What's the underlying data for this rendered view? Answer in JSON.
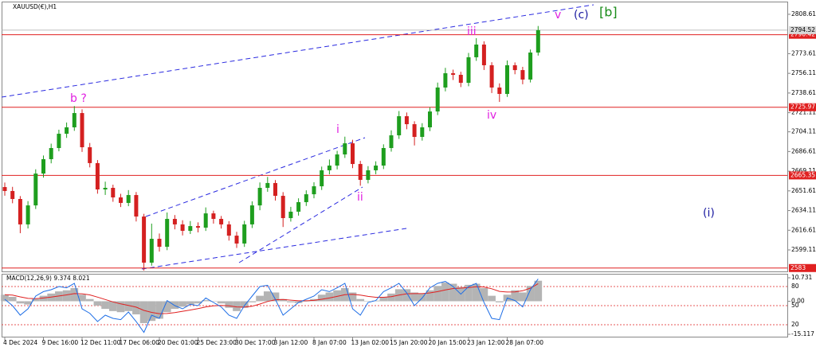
{
  "chart_data": [
    {
      "type": "candlestick",
      "title": "XAUUSD(€),H1",
      "categories": [
        "4 Dec 2024",
        null,
        null,
        null,
        null,
        "9 Dec 16:00",
        null,
        null,
        null,
        null,
        "12 Dec 11:00",
        null,
        null,
        null,
        null,
        "17 Dec 06:00",
        null,
        null,
        null,
        null,
        "20 Dec 01:00",
        null,
        null,
        null,
        null,
        "25 Dec 23:00",
        null,
        null,
        null,
        null,
        "30 Dec 17:00",
        null,
        null,
        null,
        null,
        "3 Jan 12:00",
        null,
        null,
        null,
        null,
        "8 Jan 07:00",
        null,
        null,
        null,
        null,
        "13 Jan 02:00",
        null,
        null,
        null,
        null,
        "15 Jan 20:00",
        null,
        null,
        null,
        null,
        "20 Jan 15:00",
        null,
        null,
        null,
        null,
        "23 Jan 12:00",
        null,
        null,
        null,
        null,
        "28 Jan 07:00",
        null,
        null,
        null,
        null
      ],
      "open": [
        2655.0,
        2651.5,
        2644.4,
        2621.8,
        2638.7,
        2667.0,
        2679.8,
        2689.7,
        2702.4,
        2708.1,
        2720.8,
        2690.4,
        2676.3,
        2652.9,
        2654.3,
        2645.8,
        2640.9,
        2647.9,
        2628.8,
        2587.8,
        2609.0,
        2601.9,
        2626.7,
        2621.8,
        2616.1,
        2620.3,
        2618.9,
        2631.6,
        2626.7,
        2621.8,
        2611.8,
        2604.8,
        2621.8,
        2638.7,
        2654.3,
        2658.6,
        2647.2,
        2627.4,
        2633.1,
        2641.6,
        2648.6,
        2655.7,
        2669.9,
        2674.1,
        2684.0,
        2693.9,
        2675.5,
        2661.4,
        2669.9,
        2674.1,
        2689.7,
        2701.0,
        2718.0,
        2710.9,
        2699.6,
        2708.1,
        2722.2,
        2743.5,
        2756.2,
        2754.8,
        2747.7,
        2770.4,
        2781.7,
        2763.3,
        2743.5,
        2737.8,
        2763.3,
        2759.0,
        2750.6,
        2774.6
      ],
      "high": [
        2659.0,
        2655.2,
        2647.0,
        2642.5,
        2670.8,
        2683.1,
        2693.6,
        2706.0,
        2712.4,
        2727.0,
        2724.1,
        2694.2,
        2679.0,
        2659.8,
        2657.1,
        2649.0,
        2652.3,
        2650.6,
        2631.2,
        2622.5,
        2613.7,
        2632.4,
        2630.1,
        2625.5,
        2624.8,
        2623.6,
        2636.9,
        2634.0,
        2629.3,
        2624.7,
        2615.2,
        2625.0,
        2642.3,
        2659.1,
        2664.0,
        2661.2,
        2650.5,
        2637.4,
        2645.0,
        2652.1,
        2659.3,
        2673.2,
        2679.5,
        2687.2,
        2699.8,
        2697.0,
        2678.3,
        2673.6,
        2677.9,
        2693.0,
        2705.4,
        2722.6,
        2721.3,
        2713.5,
        2711.8,
        2726.0,
        2747.9,
        2761.0,
        2759.4,
        2757.5,
        2774.3,
        2787.4,
        2784.6,
        2766.0,
        2747.2,
        2767.5,
        2765.8,
        2761.9,
        2777.3,
        2798.2
      ],
      "low": [
        2647.3,
        2640.6,
        2614.0,
        2618.2,
        2635.5,
        2663.4,
        2676.1,
        2686.8,
        2698.7,
        2705.0,
        2686.2,
        2672.5,
        2649.1,
        2648.0,
        2641.9,
        2637.2,
        2638.0,
        2624.4,
        2580.7,
        2585.1,
        2597.6,
        2598.9,
        2617.4,
        2612.0,
        2613.3,
        2614.7,
        2616.0,
        2622.5,
        2618.1,
        2607.4,
        2600.9,
        2601.8,
        2618.6,
        2634.4,
        2650.8,
        2643.0,
        2619.5,
        2624.3,
        2629.6,
        2638.2,
        2645.0,
        2652.4,
        2666.3,
        2670.7,
        2680.9,
        2671.8,
        2656.2,
        2658.3,
        2666.4,
        2671.0,
        2686.5,
        2697.8,
        2706.4,
        2692.0,
        2696.3,
        2704.7,
        2719.0,
        2740.1,
        2750.2,
        2743.9,
        2744.6,
        2767.2,
        2759.1,
        2738.6,
        2730.7,
        2735.2,
        2755.3,
        2746.4,
        2748.0,
        2771.9
      ],
      "close": [
        2651.5,
        2644.4,
        2621.8,
        2638.7,
        2667.0,
        2679.8,
        2689.7,
        2702.4,
        2708.1,
        2720.8,
        2690.4,
        2676.3,
        2652.9,
        2654.3,
        2645.8,
        2640.9,
        2647.9,
        2628.8,
        2587.8,
        2609.0,
        2601.9,
        2626.7,
        2621.8,
        2616.1,
        2620.3,
        2618.9,
        2631.6,
        2626.7,
        2621.8,
        2611.8,
        2604.8,
        2621.8,
        2638.7,
        2654.3,
        2658.6,
        2647.2,
        2627.4,
        2633.1,
        2641.6,
        2648.6,
        2655.7,
        2669.9,
        2674.1,
        2684.0,
        2693.9,
        2675.5,
        2661.4,
        2669.9,
        2674.1,
        2689.7,
        2701.0,
        2718.0,
        2710.9,
        2699.6,
        2708.1,
        2722.2,
        2743.5,
        2756.2,
        2754.8,
        2747.7,
        2770.4,
        2781.7,
        2763.3,
        2743.5,
        2737.8,
        2763.3,
        2759.0,
        2750.6,
        2774.6,
        2794.52
      ],
      "up_color": "#1e9e1e",
      "down_color": "#d42020",
      "ylim": [
        2579.3,
        2819.9
      ],
      "yticks": [
        2808.61,
        2773.61,
        2756.11,
        2738.61,
        2721.11,
        2704.11,
        2686.61,
        2669.11,
        2651.61,
        2634.11,
        2616.61,
        2599.11
      ],
      "levels": [
        2790.42,
        2725.97,
        2665.35,
        2583.0
      ],
      "level_color": "#e02020",
      "current_price": 2794.52,
      "annotations": [
        {
          "text": "b ?",
          "color": "#e020e0"
        },
        {
          "text": "i",
          "color": "#e020e0"
        },
        {
          "text": "ii",
          "color": "#e020e0"
        },
        {
          "text": "iii",
          "color": "#e020e0"
        },
        {
          "text": "iv",
          "color": "#e020e0"
        },
        {
          "text": "v",
          "color": "#e020e0"
        },
        {
          "text": "(c)",
          "color": "#1a1aa0"
        },
        {
          "text": "[b]",
          "color": "#1a8c1a"
        },
        {
          "text": "(i)",
          "color": "#1a1aa0"
        }
      ]
    },
    {
      "type": "macd",
      "title": "MACD(12,26,9) 9.374 8.021",
      "ylim": [
        -15.117,
        10.731
      ],
      "yticks": [
        10.731,
        {
          "value": 0,
          "label": "0.00"
        },
        -15.117
      ],
      "y2lim": [
        0,
        100
      ],
      "y2ticks": [
        80,
        50,
        20
      ],
      "series": [
        {
          "color": "#b4b4b4",
          "values": [
            3,
            2,
            -1,
            -1.5,
            1,
            2.5,
            3.5,
            4.5,
            5,
            6,
            3,
            1,
            -2,
            -3.5,
            -4.5,
            -5,
            -4.5,
            -6,
            -10,
            -9,
            -8,
            -5,
            -3.5,
            -2.5,
            -1.5,
            -1,
            0.5,
            0,
            -1,
            -3,
            -4.5,
            -3,
            -0.5,
            2.5,
            4.5,
            4,
            1,
            -0.5,
            -0.8,
            0,
            1,
            3,
            4,
            5,
            6,
            4,
            1,
            0,
            0.3,
            2,
            3.5,
            5.5,
            5.5,
            4,
            3.5,
            5,
            7,
            8.5,
            8,
            6.5,
            7.5,
            8,
            6,
            2.5,
            -0.5,
            3,
            5,
            4,
            7,
            9.374
          ]
        },
        {
          "color": "#e02020",
          "values": [
            3,
            2.8,
            2.0,
            1.3,
            1.2,
            1.5,
            1.9,
            2.4,
            2.9,
            3.5,
            3.4,
            2.9,
            1.9,
            0.8,
            -0.3,
            -1.2,
            -1.9,
            -2.7,
            -4.2,
            -5.1,
            -5.7,
            -5.6,
            -5.2,
            -4.6,
            -4.0,
            -3.4,
            -2.6,
            -2.1,
            -1.9,
            -2.1,
            -2.6,
            -2.7,
            -2.3,
            -1.3,
            -0.1,
            0.7,
            0.8,
            0.5,
            0.2,
            0.2,
            0.4,
            0.9,
            1.5,
            2.2,
            3.0,
            3.2,
            2.8,
            2.2,
            1.8,
            1.8,
            2.1,
            2.8,
            3.4,
            3.5,
            3.5,
            3.8,
            4.4,
            5.2,
            5.8,
            6.0,
            6.3,
            6.6,
            6.5,
            5.7,
            4.5,
            4.2,
            4.3,
            4.8,
            6.0,
            8.021
          ]
        },
        {
          "color": "#1e6ee6",
          "axis": "y2",
          "values": [
            60,
            50,
            35,
            45,
            65,
            72,
            75,
            80,
            78,
            85,
            45,
            38,
            25,
            35,
            30,
            28,
            40,
            25,
            8,
            35,
            30,
            58,
            50,
            45,
            52,
            50,
            62,
            55,
            48,
            35,
            30,
            50,
            65,
            80,
            82,
            60,
            35,
            45,
            55,
            60,
            65,
            75,
            72,
            78,
            85,
            45,
            35,
            55,
            58,
            72,
            78,
            85,
            70,
            50,
            62,
            78,
            85,
            88,
            80,
            68,
            80,
            85,
            55,
            30,
            28,
            62,
            58,
            48,
            75,
            92
          ]
        }
      ]
    }
  ]
}
